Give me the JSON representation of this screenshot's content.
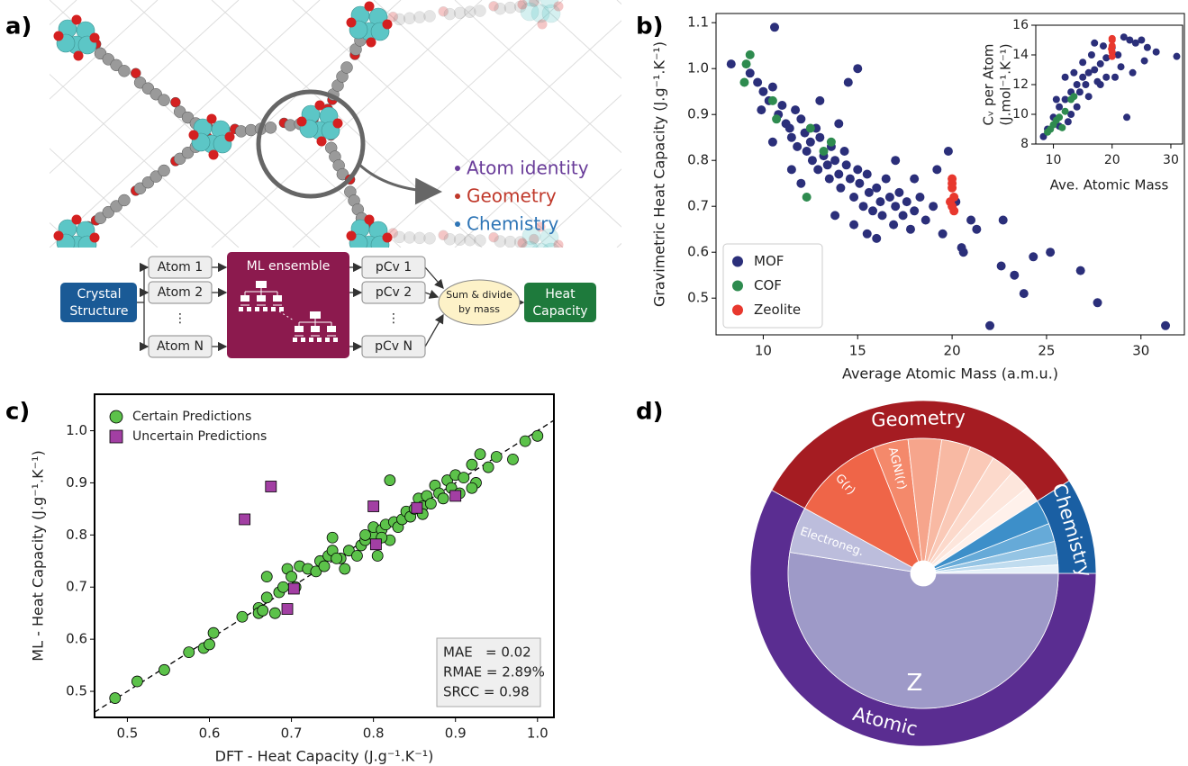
{
  "panel_labels": [
    "a)",
    "b)",
    "c)",
    "d)"
  ],
  "diagram": {
    "legend": [
      "Atom identity",
      "Geometry",
      "Chemistry"
    ],
    "input": [
      "Crystal",
      "Structure"
    ],
    "atoms": [
      "Atom 1",
      "Atom 2",
      "⋮",
      "Atom N"
    ],
    "model": "ML ensemble",
    "outputs": [
      "pCv 1",
      "pCv 2",
      "⋮",
      "pCv N"
    ],
    "sum": [
      "Sum & divide",
      "by mass"
    ],
    "result": [
      "Heat",
      "Capacity"
    ]
  },
  "chart_data": [
    {
      "type": "scatter",
      "xlabel": "Average Atomic Mass (a.m.u.)",
      "ylabel": "Gravimetric Heat Capacity (J.g⁻¹.K⁻¹)",
      "xlim": [
        7.5,
        32.3
      ],
      "ylim": [
        0.42,
        1.12
      ],
      "xticks": [
        10,
        15,
        20,
        25,
        30
      ],
      "yticks": [
        0.5,
        0.6,
        0.7,
        0.8,
        0.9,
        {
          "value": 1,
          "label": "1.0"
        },
        1.1
      ],
      "legend": "lower left",
      "series": [
        {
          "name": "MOF",
          "color": "#2b2f7a",
          "marker": "circle",
          "x": [
            8.3,
            9.3,
            9.7,
            10.0,
            10.3,
            10.5,
            10.6,
            10.8,
            11.0,
            11.2,
            11.4,
            11.5,
            11.7,
            11.8,
            12.0,
            12.2,
            12.3,
            12.5,
            12.6,
            12.8,
            12.9,
            13.0,
            13.2,
            13.4,
            13.5,
            13.6,
            13.8,
            14.0,
            14.1,
            14.3,
            14.4,
            14.6,
            14.8,
            15.0,
            15.1,
            15.3,
            15.5,
            15.6,
            15.8,
            16.0,
            16.2,
            16.3,
            16.5,
            16.7,
            16.9,
            17.0,
            17.2,
            17.4,
            17.6,
            17.8,
            18.0,
            18.3,
            18.6,
            19.0,
            19.5,
            12.0,
            11.5,
            13.0,
            14.5,
            15.0,
            14.0,
            13.8,
            15.5,
            14.8,
            16.0,
            17.0,
            18.0,
            19.2,
            20.5,
            21.0,
            20.6,
            21.3,
            22.0,
            22.7,
            22.6,
            23.3,
            23.8,
            24.3,
            25.2,
            26.8,
            27.7,
            31.3,
            19.8,
            20.2,
            9.9,
            10.5
          ],
          "values": [
            1.01,
            0.99,
            0.97,
            0.95,
            0.93,
            0.96,
            1.09,
            0.9,
            0.92,
            0.88,
            0.87,
            0.85,
            0.91,
            0.83,
            0.89,
            0.86,
            0.82,
            0.84,
            0.8,
            0.87,
            0.78,
            0.85,
            0.81,
            0.79,
            0.76,
            0.83,
            0.8,
            0.77,
            0.74,
            0.82,
            0.79,
            0.76,
            0.72,
            0.78,
            0.75,
            0.7,
            0.77,
            0.73,
            0.69,
            0.74,
            0.71,
            0.68,
            0.76,
            0.72,
            0.66,
            0.7,
            0.73,
            0.68,
            0.71,
            0.65,
            0.69,
            0.72,
            0.67,
            0.7,
            0.64,
            0.75,
            0.78,
            0.93,
            0.97,
            1.0,
            0.88,
            0.68,
            0.64,
            0.66,
            0.63,
            0.8,
            0.76,
            0.78,
            0.61,
            0.67,
            0.6,
            0.65,
            0.44,
            0.67,
            0.57,
            0.55,
            0.51,
            0.59,
            0.6,
            0.56,
            0.49,
            0.44,
            0.82,
            0.71,
            0.91,
            0.84
          ]
        },
        {
          "name": "COF",
          "color": "#2e8b4f",
          "marker": "circle",
          "x": [
            9.1,
            9.3,
            9.0,
            10.5,
            10.7,
            12.3,
            12.5,
            13.2,
            13.6
          ],
          "values": [
            1.01,
            1.03,
            0.97,
            0.93,
            0.89,
            0.72,
            0.87,
            0.82,
            0.84
          ]
        },
        {
          "name": "Zeolite",
          "color": "#e8382e",
          "marker": "circle",
          "x": [
            20.0,
            20.0,
            20.1,
            20.0,
            20.1,
            20.0,
            19.9
          ],
          "values": [
            0.75,
            0.74,
            0.72,
            0.7,
            0.69,
            0.76,
            0.71
          ]
        }
      ]
    },
    {
      "type": "scatter",
      "xlabel": "Ave. Atomic Mass",
      "ylabel": [
        "Cᵥ per Atom",
        "(J.mol⁻¹.K⁻¹)"
      ],
      "xlim": [
        7,
        32
      ],
      "ylim": [
        8,
        16
      ],
      "xticks": [
        10,
        20,
        30
      ],
      "yticks": [
        8,
        10,
        12,
        14,
        16
      ],
      "series": [
        {
          "color": "#2b2f7a",
          "marker": "circle",
          "x": [
            8.3,
            9,
            10,
            11,
            12,
            13,
            14,
            15,
            16,
            17,
            18,
            19,
            20,
            21,
            22,
            23,
            24,
            25,
            26,
            27.5,
            31,
            22.5,
            12,
            14,
            16,
            18,
            13,
            15,
            17,
            11,
            19,
            16.5,
            10.5,
            14.5,
            12.5,
            20.5,
            21.5,
            25.5,
            23.5,
            15.5,
            17.5,
            18.5,
            13.5
          ],
          "values": [
            8.5,
            9,
            9.8,
            10.5,
            11,
            11.5,
            12,
            12.5,
            12.8,
            13,
            13.4,
            13.8,
            14.5,
            14,
            15.2,
            15,
            14.8,
            15,
            14.5,
            14.2,
            13.9,
            9.8,
            12.5,
            10.5,
            11.2,
            12,
            10,
            13.5,
            14.8,
            9.2,
            12.5,
            14,
            11,
            11.5,
            9.5,
            12.5,
            13.2,
            13.6,
            12.8,
            12,
            12.2,
            14.6,
            12.8
          ]
        },
        {
          "color": "#2e8b4f",
          "marker": "circle",
          "x": [
            9.5,
            10,
            10.5,
            11,
            9,
            13,
            13.5,
            12,
            11.5
          ],
          "values": [
            9,
            9.3,
            9.6,
            9.8,
            8.8,
            11,
            11.2,
            10.2,
            9.1
          ]
        },
        {
          "color": "#e8382e",
          "marker": "circle",
          "x": [
            20,
            20,
            20,
            20,
            20,
            19.9
          ],
          "values": [
            15,
            14.6,
            14.2,
            13.9,
            15.1,
            14.4
          ]
        }
      ]
    },
    {
      "type": "scatter",
      "xlabel": "DFT - Heat Capacity (J.g⁻¹.K⁻¹)",
      "ylabel": "ML - Heat Capacity (J.g⁻¹.K⁻¹)",
      "xlim": [
        0.46,
        1.02
      ],
      "ylim": [
        0.45,
        1.07
      ],
      "xticks": [
        0.5,
        0.6,
        0.7,
        0.8,
        0.9,
        {
          "value": 1,
          "label": "1.0"
        }
      ],
      "yticks": [
        0.5,
        0.6,
        0.7,
        0.8,
        0.9,
        {
          "value": 1,
          "label": "1.0"
        }
      ],
      "legend": "upper left",
      "identity_line": true,
      "annotations": [
        "MAE   = 0.02",
        "RMAE = 2.89%",
        "SRCC = 0.98"
      ],
      "series": [
        {
          "name": "Certain Predictions",
          "color": "#5cc24a",
          "marker": "circle",
          "x": [
            0.485,
            0.512,
            0.545,
            0.575,
            0.593,
            0.6,
            0.605,
            0.64,
            0.66,
            0.66,
            0.665,
            0.67,
            0.67,
            0.685,
            0.69,
            0.695,
            0.7,
            0.705,
            0.71,
            0.72,
            0.73,
            0.735,
            0.74,
            0.745,
            0.75,
            0.75,
            0.76,
            0.765,
            0.77,
            0.78,
            0.785,
            0.79,
            0.8,
            0.8,
            0.805,
            0.81,
            0.815,
            0.82,
            0.82,
            0.825,
            0.83,
            0.835,
            0.84,
            0.845,
            0.85,
            0.855,
            0.86,
            0.865,
            0.87,
            0.875,
            0.88,
            0.885,
            0.89,
            0.895,
            0.9,
            0.905,
            0.91,
            0.92,
            0.925,
            0.93,
            0.94,
            0.95,
            0.97,
            0.985,
            1.0,
            0.92,
            0.86,
            0.81,
            0.79,
            0.68,
            0.755
          ],
          "values": [
            0.487,
            0.519,
            0.541,
            0.575,
            0.583,
            0.59,
            0.612,
            0.643,
            0.66,
            0.65,
            0.655,
            0.68,
            0.72,
            0.69,
            0.7,
            0.735,
            0.72,
            0.7,
            0.74,
            0.735,
            0.73,
            0.75,
            0.74,
            0.76,
            0.77,
            0.795,
            0.755,
            0.735,
            0.77,
            0.76,
            0.78,
            0.79,
            0.8,
            0.815,
            0.76,
            0.81,
            0.82,
            0.905,
            0.79,
            0.825,
            0.815,
            0.83,
            0.845,
            0.835,
            0.85,
            0.87,
            0.855,
            0.875,
            0.86,
            0.895,
            0.88,
            0.87,
            0.905,
            0.89,
            0.915,
            0.88,
            0.91,
            0.935,
            0.9,
            0.955,
            0.93,
            0.95,
            0.945,
            0.98,
            0.99,
            0.89,
            0.84,
            0.795,
            0.8,
            0.65,
            0.755
          ]
        },
        {
          "name": "Uncertain Predictions",
          "color": "#a23fa3",
          "marker": "square",
          "x": [
            0.643,
            0.675,
            0.8,
            0.9,
            0.853,
            0.803,
            0.703,
            0.695
          ],
          "values": [
            0.83,
            0.893,
            0.855,
            0.875,
            0.852,
            0.782,
            0.697,
            0.658
          ]
        }
      ]
    },
    {
      "type": "sunburst",
      "rings": [
        {
          "categories": [
            "Atomic",
            "Geometry",
            "Chemistry"
          ],
          "values": [
            58,
            33,
            9
          ],
          "colors": [
            "#5a2d91",
            "#a51c22",
            "#1a5fa3"
          ]
        },
        {
          "categories": [
            "Z",
            "Electroneg.",
            "G(r)",
            "AGNI(r)",
            null,
            null,
            null,
            null,
            null,
            null,
            null,
            null,
            null,
            null,
            null
          ],
          "values": [
            52.5,
            5.5,
            11,
            4.2,
            4,
            3.5,
            3,
            2.8,
            2.5,
            2,
            3,
            2.2,
            1.6,
            1.2,
            1.0
          ],
          "colors": [
            "#9e9ac8",
            "#bcbddc",
            "#ef6548",
            "#f4896b",
            "#f6a58c",
            "#f8b9a3",
            "#fac9b7",
            "#fcd9cb",
            "#fde6dc",
            "#fff1eb",
            "#3d8fc9",
            "#66aad8",
            "#94c4e4",
            "#c0dcef",
            "#e6f1f9"
          ]
        }
      ]
    }
  ]
}
